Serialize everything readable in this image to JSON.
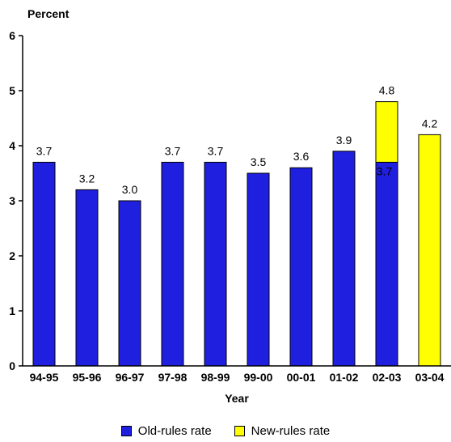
{
  "chart_data": {
    "type": "bar",
    "ylabel": "Percent",
    "xlabel": "Year",
    "ylim": [
      0,
      6
    ],
    "yticks": [
      0,
      1,
      2,
      3,
      4,
      5,
      6
    ],
    "categories": [
      "94-95",
      "95-96",
      "96-97",
      "97-98",
      "98-99",
      "99-00",
      "00-01",
      "01-02",
      "02-03",
      "03-04"
    ],
    "series": [
      {
        "name": "Old-rules rate",
        "color": "#1f1fdf",
        "values": [
          3.7,
          3.2,
          3.0,
          3.7,
          3.7,
          3.5,
          3.6,
          3.9,
          3.7,
          null
        ],
        "labels": [
          "3.7",
          "3.2",
          "3.0",
          "3.7",
          "3.7",
          "3.5",
          "3.6",
          "3.9",
          "3.7",
          null
        ]
      },
      {
        "name": "New-rules rate",
        "color": "#ffff00",
        "values": [
          null,
          null,
          null,
          null,
          null,
          null,
          null,
          null,
          4.8,
          4.2
        ],
        "labels": [
          null,
          null,
          null,
          null,
          null,
          null,
          null,
          null,
          "4.8",
          "4.2"
        ]
      }
    ],
    "grid": false,
    "legend_position": "bottom"
  }
}
